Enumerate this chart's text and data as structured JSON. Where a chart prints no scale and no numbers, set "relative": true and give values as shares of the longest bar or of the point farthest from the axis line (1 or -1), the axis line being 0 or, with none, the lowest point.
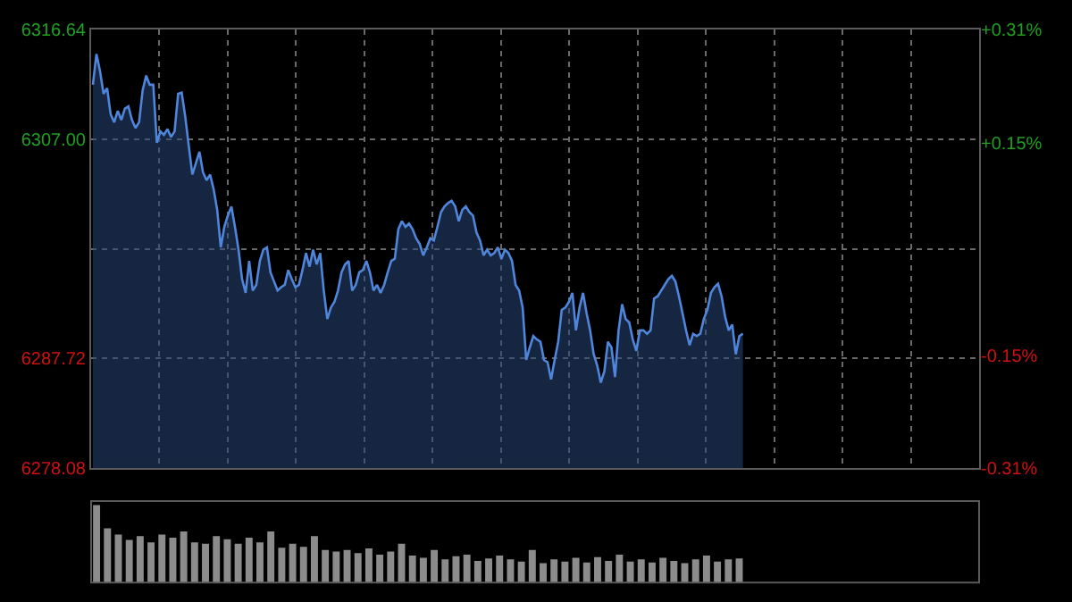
{
  "chart_data": [
    {
      "type": "area",
      "categories": [
        null,
        null,
        null,
        null,
        null,
        null,
        null,
        null,
        null,
        null,
        null,
        null,
        null,
        null,
        null,
        null,
        null,
        null,
        null,
        null,
        null,
        null,
        null,
        null,
        null,
        null,
        null,
        null,
        null,
        null,
        null,
        null,
        null,
        null,
        null,
        null,
        null,
        null,
        null,
        null,
        null,
        null,
        null,
        null,
        null,
        null,
        null,
        null,
        null,
        null,
        null,
        null,
        null,
        null,
        null,
        null,
        null,
        null,
        null,
        null,
        null,
        null,
        null,
        null,
        null,
        null,
        null,
        null,
        null,
        null,
        null,
        null,
        null,
        null,
        null,
        null,
        null,
        null,
        null,
        null,
        null,
        null,
        null,
        null,
        null,
        null,
        null,
        null,
        null,
        null,
        null,
        null,
        null,
        null,
        null,
        null,
        null,
        null,
        null,
        null,
        null,
        null,
        null,
        null,
        null,
        null,
        null,
        null,
        null,
        null,
        null,
        null,
        null,
        null,
        null,
        null,
        null,
        null,
        null,
        null,
        null,
        null,
        null,
        null,
        null,
        null,
        null,
        null,
        null,
        null,
        null,
        null,
        null,
        null,
        null,
        null,
        null,
        null,
        null,
        null,
        null,
        null,
        null,
        null,
        null,
        null,
        null,
        null,
        null,
        null,
        null,
        null,
        null,
        null,
        null,
        null,
        null,
        null,
        null,
        null,
        null,
        null,
        null,
        null,
        null,
        null,
        null,
        null,
        null,
        null,
        null,
        null,
        null,
        null,
        null,
        null,
        null,
        null,
        null,
        null,
        null,
        null,
        null,
        null,
        null,
        null,
        null,
        null,
        null,
        null,
        null,
        null,
        null,
        null,
        null,
        null,
        null,
        null,
        null,
        null,
        null,
        null,
        null,
        null,
        null,
        null,
        null,
        null,
        null,
        null,
        null,
        null,
        null,
        null,
        null,
        null,
        null,
        null,
        null,
        null,
        null,
        null,
        null,
        null,
        null,
        null,
        null,
        null,
        null,
        null,
        null,
        null,
        null,
        null,
        null,
        null,
        null,
        null,
        null,
        null,
        null,
        null,
        null,
        null,
        null,
        null,
        null,
        null,
        null,
        null
      ],
      "series": [
        {
          "color": "#4f86dc",
          "values": [
            6311.8,
            6314.5,
            6313.0,
            6311.0,
            6311.5,
            6309.2,
            6308.5,
            6309.5,
            6308.7,
            6309.7,
            6309.9,
            6308.7,
            6308.0,
            6308.5,
            6311.3,
            6312.6,
            6311.8,
            6311.8,
            6306.7,
            6307.7,
            6307.4,
            6307.9,
            6307.2,
            6307.7,
            6311.0,
            6311.1,
            6309.0,
            6306.4,
            6303.9,
            6304.9,
            6305.9,
            6304.1,
            6303.4,
            6303.9,
            6302.6,
            6300.8,
            6297.5,
            6299.3,
            6300.3,
            6301.1,
            6299.3,
            6297.3,
            6294.7,
            6293.5,
            6296.3,
            6293.7,
            6294.2,
            6296.3,
            6297.3,
            6297.5,
            6295.3,
            6294.5,
            6293.7,
            6294.0,
            6294.2,
            6295.5,
            6294.7,
            6294.0,
            6294.2,
            6295.5,
            6297.0,
            6295.8,
            6297.3,
            6296.0,
            6297.0,
            6293.7,
            6291.2,
            6292.2,
            6292.7,
            6293.7,
            6295.3,
            6296.0,
            6296.3,
            6293.7,
            6294.2,
            6295.3,
            6295.5,
            6296.3,
            6295.3,
            6293.7,
            6294.2,
            6293.5,
            6294.2,
            6295.3,
            6296.3,
            6296.5,
            6299.1,
            6299.8,
            6299.3,
            6299.6,
            6299.1,
            6298.3,
            6297.8,
            6296.8,
            6297.5,
            6298.3,
            6298.1,
            6299.3,
            6300.6,
            6301.1,
            6301.4,
            6301.6,
            6301.1,
            6299.8,
            6300.8,
            6301.1,
            6300.6,
            6300.3,
            6298.8,
            6298.1,
            6296.8,
            6297.3,
            6296.8,
            6297.0,
            6297.5,
            6296.5,
            6297.3,
            6297.0,
            6296.3,
            6294.2,
            6293.7,
            6292.2,
            6287.6,
            6288.7,
            6289.7,
            6289.4,
            6289.2,
            6287.6,
            6287.4,
            6285.9,
            6287.6,
            6289.2,
            6292.0,
            6292.2,
            6292.7,
            6293.5,
            6290.2,
            6292.2,
            6293.5,
            6291.7,
            6290.2,
            6288.1,
            6287.1,
            6285.6,
            6286.6,
            6289.2,
            6288.7,
            6286.1,
            6290.2,
            6292.5,
            6291.2,
            6290.9,
            6289.4,
            6288.4,
            6290.2,
            6290.2,
            6289.9,
            6290.2,
            6293.0,
            6293.2,
            6293.7,
            6294.2,
            6294.7,
            6295.0,
            6294.5,
            6293.2,
            6291.7,
            6290.2,
            6288.9,
            6289.9,
            6289.7,
            6289.9,
            6291.2,
            6292.0,
            6293.5,
            6294.0,
            6294.3,
            6293.2,
            6291.4,
            6290.2,
            6290.7,
            6288.1,
            6289.7,
            6289.9,
            null,
            null,
            null,
            null,
            null,
            null,
            null,
            null,
            null,
            null,
            null,
            null,
            null,
            null,
            null,
            null,
            null,
            null,
            null,
            null,
            null,
            null,
            null,
            null,
            null,
            null,
            null,
            null,
            null,
            null,
            null,
            null,
            null,
            null,
            null,
            null,
            null,
            null,
            null,
            null,
            null,
            null,
            null,
            null,
            null,
            null,
            null,
            null,
            null,
            null,
            null,
            null,
            null,
            null,
            null,
            null,
            null,
            null,
            null,
            null,
            null,
            null,
            null,
            null,
            null,
            null
          ]
        }
      ],
      "ylim": [
        6278.08,
        6316.64
      ],
      "yticks": [
        {
          "value": 6278.08,
          "label": "6278.08"
        },
        {
          "value": 6287.72,
          "label": "6287.72"
        },
        {
          "value": 6297.36,
          "label": null
        },
        {
          "value": 6307.0,
          "label": "6307.00"
        },
        {
          "value": 6316.64,
          "label": "6316.64"
        }
      ],
      "y2lim": [
        -0.31,
        0.31
      ],
      "y2ticks": [
        {
          "value": -0.31,
          "label": "-0.31%"
        },
        {
          "value": -0.15,
          "label": "-0.15%"
        },
        {
          "value": 0.15,
          "label": "+0.15%"
        },
        {
          "value": 0.31,
          "label": "+0.31%"
        }
      ],
      "tick_labels": "y",
      "grid": true
    },
    {
      "type": "bar",
      "relative": true,
      "tick_labels": false,
      "categories": [
        null,
        null,
        null,
        null,
        null,
        null,
        null,
        null,
        null,
        null,
        null,
        null,
        null,
        null,
        null,
        null,
        null,
        null,
        null,
        null,
        null,
        null,
        null,
        null,
        null,
        null,
        null,
        null,
        null,
        null,
        null,
        null,
        null,
        null,
        null,
        null,
        null,
        null,
        null,
        null,
        null,
        null,
        null,
        null,
        null,
        null,
        null,
        null,
        null,
        null,
        null,
        null,
        null,
        null,
        null,
        null,
        null,
        null,
        null,
        null
      ],
      "series": [
        {
          "color": "#8c8c8c",
          "values": [
            1.0,
            0.7,
            0.62,
            0.55,
            0.6,
            0.52,
            0.62,
            0.58,
            0.66,
            0.52,
            0.5,
            0.6,
            0.56,
            0.5,
            0.58,
            0.52,
            0.66,
            0.45,
            0.5,
            0.46,
            0.6,
            0.42,
            0.4,
            0.42,
            0.38,
            0.44,
            0.36,
            0.4,
            0.5,
            0.35,
            0.32,
            0.42,
            0.3,
            0.34,
            0.36,
            0.28,
            0.31,
            0.35,
            0.3,
            0.27,
            0.42,
            0.25,
            0.3,
            0.27,
            0.32,
            0.26,
            0.33,
            0.28,
            0.36,
            0.27,
            0.3,
            0.26,
            0.32,
            0.28,
            0.25,
            0.3,
            0.35,
            0.27,
            0.3,
            0.31
          ]
        }
      ]
    }
  ]
}
